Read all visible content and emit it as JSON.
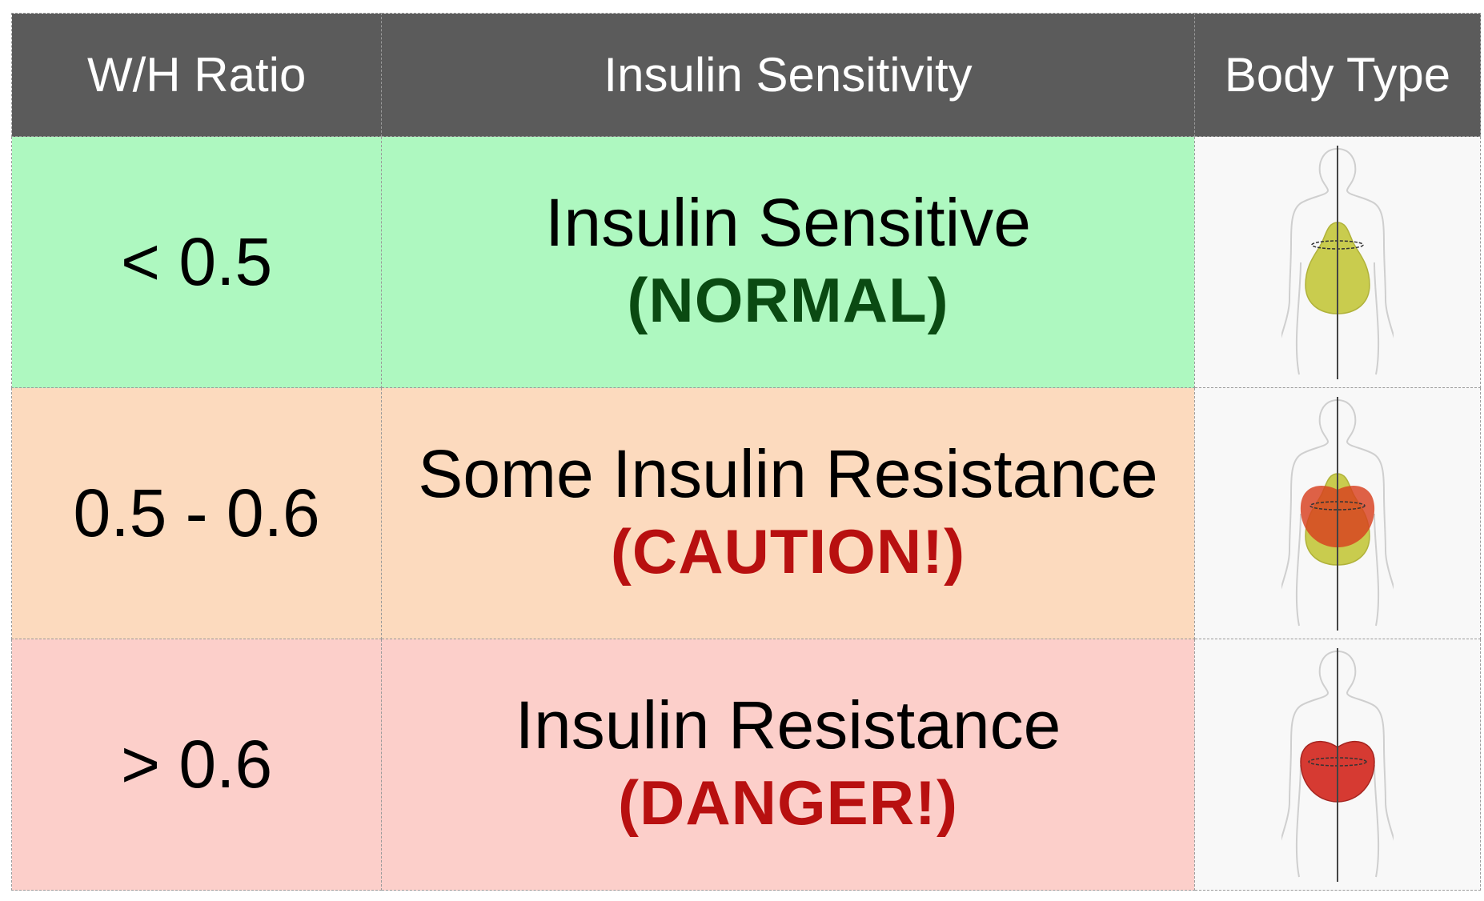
{
  "headers": [
    "W/H Ratio",
    "Insulin Sensitivity",
    "Body Type"
  ],
  "rows": [
    {
      "ratio": "< 0.5",
      "label": "Insulin Sensitive",
      "status": "(NORMAL)",
      "status_color": "#0a4a12",
      "row_color": "#aef8c0",
      "body_shape": "pear-icon"
    },
    {
      "ratio": "0.5 - 0.6",
      "label": "Some Insulin Resistance",
      "status": "(CAUTION!)",
      "status_color": "#b81010",
      "row_color": "#fcdabe",
      "body_shape": "pear-apple-icon"
    },
    {
      "ratio": "> 0.6",
      "label": "Insulin Resistance",
      "status": "(DANGER!)",
      "status_color": "#b81010",
      "row_color": "#fccfca",
      "body_shape": "apple-icon"
    }
  ],
  "colors": {
    "header_bg": "#5b5b5b",
    "header_text": "#ffffff"
  }
}
